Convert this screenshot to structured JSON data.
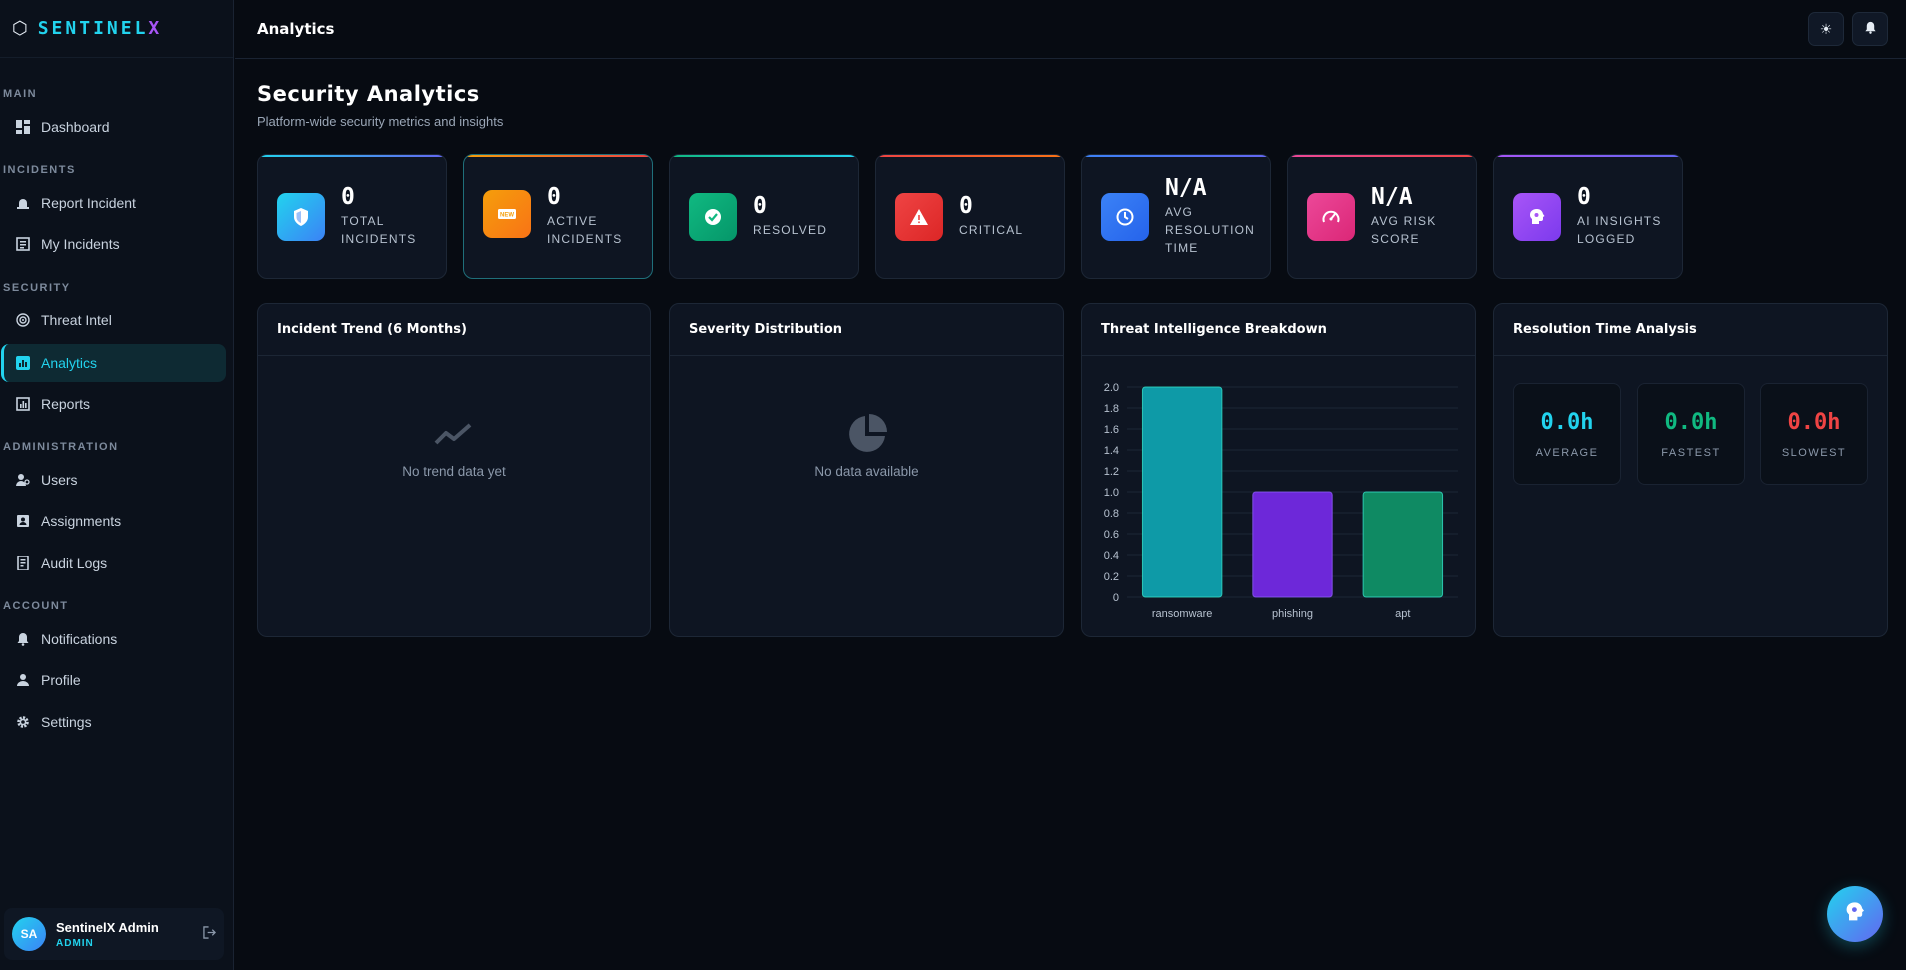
{
  "brand": {
    "name_main": "SENTINEL",
    "name_accent": "X"
  },
  "sidebar": {
    "sections": [
      {
        "label": "MAIN",
        "items": [
          {
            "label": "Dashboard",
            "icon": "dashboard-icon"
          }
        ]
      },
      {
        "label": "INCIDENTS",
        "items": [
          {
            "label": "Report Incident",
            "icon": "bell-icon"
          },
          {
            "label": "My Incidents",
            "icon": "list-icon"
          }
        ]
      },
      {
        "label": "SECURITY",
        "items": [
          {
            "label": "Threat Intel",
            "icon": "radar-icon"
          },
          {
            "label": "Analytics",
            "icon": "chart-icon",
            "active": true
          },
          {
            "label": "Reports",
            "icon": "report-icon"
          }
        ]
      },
      {
        "label": "ADMINISTRATION",
        "items": [
          {
            "label": "Users",
            "icon": "users-icon"
          },
          {
            "label": "Assignments",
            "icon": "assignment-icon"
          },
          {
            "label": "Audit Logs",
            "icon": "audit-icon"
          }
        ]
      },
      {
        "label": "ACCOUNT",
        "items": [
          {
            "label": "Notifications",
            "icon": "bell-icon"
          },
          {
            "label": "Profile",
            "icon": "user-icon"
          },
          {
            "label": "Settings",
            "icon": "gear-icon"
          }
        ]
      }
    ],
    "user": {
      "initials": "SA",
      "name": "SentinelX Admin",
      "role": "ADMIN"
    }
  },
  "topbar": {
    "title": "Analytics"
  },
  "page": {
    "title": "Security Analytics",
    "subtitle": "Platform-wide security metrics and insights"
  },
  "stats": [
    {
      "value": "0",
      "label": "TOTAL\nINCIDENTS",
      "color": "#22d3ee",
      "icon": "shield-icon"
    },
    {
      "value": "0",
      "label": "ACTIVE\nINCIDENTS",
      "color": "#f59e0b",
      "icon": "new-icon"
    },
    {
      "value": "0",
      "label": "RESOLVED",
      "color": "#10b981",
      "icon": "check-icon"
    },
    {
      "value": "0",
      "label": "CRITICAL",
      "color": "#ef4444",
      "icon": "warning-icon"
    },
    {
      "value": "N/A",
      "label": "AVG\nRESOLUTION\nTIME",
      "color": "#3b82f6",
      "icon": "clock-icon"
    },
    {
      "value": "N/A",
      "label": "AVG RISK\nSCORE",
      "color": "#ec4899",
      "icon": "gauge-icon"
    },
    {
      "value": "0",
      "label": "AI INSIGHTS\nLOGGED",
      "color": "#a855f7",
      "icon": "brain-icon"
    }
  ],
  "panels": {
    "trend": {
      "title": "Incident Trend (6 Months)",
      "empty_text": "No trend data yet"
    },
    "severity": {
      "title": "Severity Distribution",
      "empty_text": "No data available"
    },
    "threat": {
      "title": "Threat Intelligence Breakdown"
    },
    "resolution": {
      "title": "Resolution Time Analysis",
      "boxes": [
        {
          "value": "0.0h",
          "label": "AVERAGE",
          "color": "#22d3ee"
        },
        {
          "value": "0.0h",
          "label": "FASTEST",
          "color": "#10b981"
        },
        {
          "value": "0.0h",
          "label": "SLOWEST",
          "color": "#ef4444"
        }
      ]
    }
  },
  "chart_data": {
    "type": "bar",
    "title": "Threat Intelligence Breakdown",
    "categories": [
      "ransomware",
      "phishing",
      "apt"
    ],
    "values": [
      2,
      1,
      1
    ],
    "colors": [
      "#0e9aa7",
      "#6d28d9",
      "#0f8a63"
    ],
    "yticks": [
      "0",
      "0.2",
      "0.4",
      "0.6",
      "0.8",
      "1.0",
      "1.2",
      "1.4",
      "1.6",
      "1.8",
      "2.0"
    ],
    "ylim": [
      0,
      2
    ],
    "grid": true
  }
}
